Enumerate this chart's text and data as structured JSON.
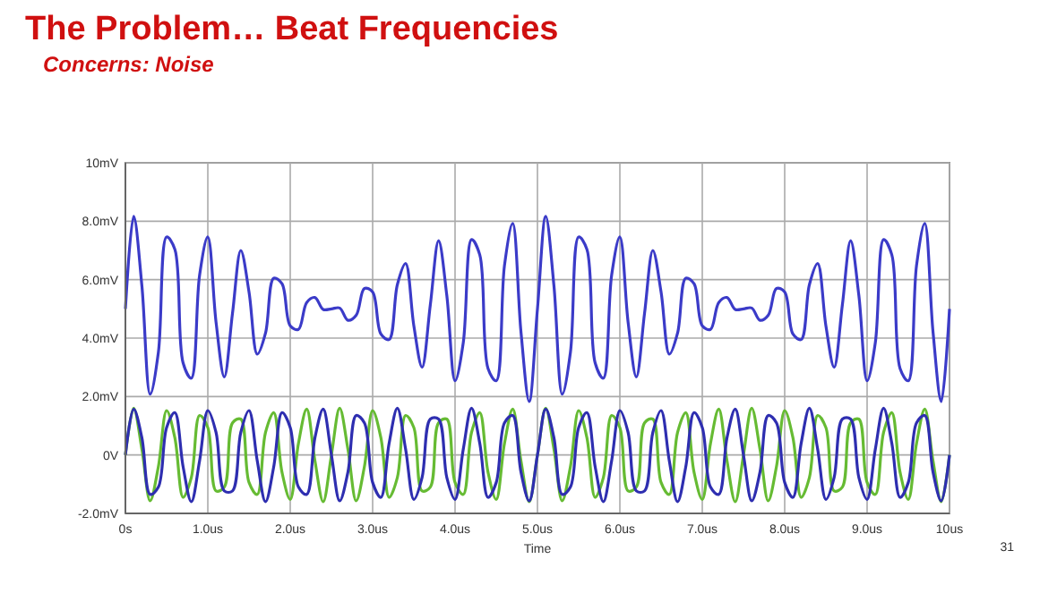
{
  "chart_data": {
    "type": "line",
    "title": "The Problem… Beat Frequencies",
    "subtitle": "Concerns: Noise",
    "xlabel": "Time",
    "annotations": [
      "31"
    ],
    "x": [
      0,
      0.1,
      0.2,
      0.3,
      0.4,
      0.5,
      0.6,
      0.7,
      0.8,
      0.9,
      1,
      1.1,
      1.2,
      1.3,
      1.4,
      1.5,
      1.6,
      1.7,
      1.8,
      1.9,
      2,
      2.1,
      2.2,
      2.3,
      2.4,
      2.5,
      2.6,
      2.7,
      2.8,
      2.9,
      3,
      3.1,
      3.2,
      3.3,
      3.4,
      3.5,
      3.6,
      3.7,
      3.8,
      3.9,
      4,
      4.1,
      4.2,
      4.3,
      4.4,
      4.5,
      4.6,
      4.7,
      4.8,
      4.9,
      5,
      5.1,
      5.2,
      5.3,
      5.4,
      5.5,
      5.6,
      5.7,
      5.8,
      5.9,
      6,
      6.1,
      6.2,
      6.3,
      6.4,
      6.5,
      6.6,
      6.7,
      6.8,
      6.9,
      7,
      7.1,
      7.2,
      7.3,
      7.4,
      7.5,
      7.6,
      7.7,
      7.8,
      7.9,
      8,
      8.1,
      8.2,
      8.3,
      8.4,
      8.5,
      8.6,
      8.7,
      8.8,
      8.9,
      9,
      9.1,
      9.2,
      9.3,
      9.4,
      9.5,
      9.6,
      9.7,
      9.8,
      9.9,
      10
    ],
    "series": [
      {
        "color": "#3b3bc8",
        "values": [
          5,
          8.17,
          5.79,
          2.08,
          3.51,
          7.46,
          7.04,
          3.15,
          2.63,
          6.15,
          7.46,
          4.54,
          2.67,
          4.86,
          7,
          5.58,
          3.45,
          4.17,
          6.05,
          5.86,
          4.42,
          4.3,
          5.22,
          5.39,
          4.98,
          5,
          5.03,
          4.61,
          4.78,
          5.7,
          5.58,
          4.14,
          3.95,
          5.83,
          6.55,
          4.42,
          3,
          5.14,
          7.33,
          5.46,
          2.54,
          3.85,
          7.37,
          6.85,
          2.96,
          2.54,
          6.49,
          7.92,
          4.21,
          1.83,
          5,
          8.17,
          5.79,
          2.08,
          3.51,
          7.46,
          7.04,
          3.15,
          2.63,
          6.15,
          7.46,
          4.54,
          2.67,
          4.86,
          7,
          5.58,
          3.45,
          4.17,
          6.05,
          5.86,
          4.42,
          4.3,
          5.22,
          5.39,
          4.98,
          5,
          5.03,
          4.61,
          4.78,
          5.7,
          5.58,
          4.14,
          3.95,
          5.83,
          6.55,
          4.42,
          3,
          5.14,
          7.33,
          5.46,
          2.54,
          3.85,
          7.37,
          6.85,
          2.96,
          2.54,
          6.49,
          7.92,
          4.21,
          1.83,
          5
        ]
      },
      {
        "color": "#66bb33",
        "values": [
          0,
          1.6,
          0.2,
          -1.57,
          -0.4,
          1.52,
          0.59,
          -1.45,
          -0.77,
          1.35,
          0.94,
          -1.23,
          -1.1,
          1.1,
          1.23,
          -0.94,
          -1.35,
          0.77,
          1.45,
          -0.59,
          -1.52,
          0.4,
          1.57,
          -0.2,
          -1.6,
          0,
          1.6,
          0.2,
          -1.57,
          -0.4,
          1.52,
          0.59,
          -1.45,
          -0.77,
          1.35,
          0.94,
          -1.23,
          -1.1,
          1.1,
          1.23,
          -0.94,
          -1.35,
          0.77,
          1.45,
          -0.59,
          -1.52,
          0.4,
          1.57,
          -0.2,
          -1.6,
          0,
          1.6,
          0.2,
          -1.57,
          -0.4,
          1.52,
          0.59,
          -1.45,
          -0.77,
          1.35,
          0.94,
          -1.23,
          -1.1,
          1.1,
          1.23,
          -0.94,
          -1.35,
          0.77,
          1.45,
          -0.59,
          -1.52,
          0.4,
          1.57,
          -0.2,
          -1.6,
          0,
          1.6,
          0.2,
          -1.57,
          -0.4,
          1.52,
          0.59,
          -1.45,
          -0.77,
          1.35,
          0.94,
          -1.23,
          -1.1,
          1.1,
          1.23,
          -0.94,
          -1.35,
          0.77,
          1.45,
          -0.59,
          -1.52,
          0.4,
          1.57,
          -0.2,
          -1.6,
          0
        ]
      },
      {
        "color": "#2e2eb0",
        "values": [
          0,
          1.57,
          0.59,
          -1.35,
          -1.1,
          0.94,
          1.45,
          -0.4,
          -1.6,
          -0.2,
          1.52,
          0.77,
          -1.23,
          -1.23,
          0.77,
          1.52,
          -0.2,
          -1.6,
          -0.4,
          1.45,
          0.94,
          -1.1,
          -1.35,
          0.59,
          1.57,
          0,
          -1.57,
          -0.59,
          1.35,
          1.1,
          -0.94,
          -1.45,
          0.4,
          1.6,
          0.2,
          -1.52,
          -0.77,
          1.23,
          1.23,
          -0.77,
          -1.52,
          0.2,
          1.6,
          0.4,
          -1.45,
          -0.94,
          1.1,
          1.35,
          -0.59,
          -1.57,
          0,
          1.57,
          0.59,
          -1.35,
          -1.1,
          0.94,
          1.45,
          -0.4,
          -1.6,
          -0.2,
          1.52,
          0.77,
          -1.23,
          -1.23,
          0.77,
          1.52,
          -0.2,
          -1.6,
          -0.4,
          1.45,
          0.94,
          -1.1,
          -1.35,
          0.59,
          1.57,
          0,
          -1.57,
          -0.59,
          1.35,
          1.1,
          -0.94,
          -1.45,
          0.4,
          1.6,
          0.2,
          -1.52,
          -0.77,
          1.23,
          1.23,
          -0.77,
          -1.52,
          0.2,
          1.6,
          0.4,
          -1.45,
          -0.94,
          1.1,
          1.35,
          -0.59,
          -1.57,
          0
        ]
      }
    ],
    "xlim": [
      0,
      10
    ],
    "xticks": [
      {
        "value": 0,
        "label": "0s"
      },
      {
        "value": 1,
        "label": "1.0us"
      },
      {
        "value": 2,
        "label": "2.0us"
      },
      {
        "value": 3,
        "label": "3.0us"
      },
      {
        "value": 4,
        "label": "4.0us"
      },
      {
        "value": 5,
        "label": "5.0us"
      },
      {
        "value": 6,
        "label": "6.0us"
      },
      {
        "value": 7,
        "label": "7.0us"
      },
      {
        "value": 8,
        "label": "8.0us"
      },
      {
        "value": 9,
        "label": "9.0us"
      },
      {
        "value": 10,
        "label": "10us"
      }
    ],
    "ylim": [
      -2,
      10
    ],
    "yticks": [
      {
        "value": -2,
        "label": "-2.0mV"
      },
      {
        "value": 0,
        "label": "0V"
      },
      {
        "value": 2,
        "label": "2.0mV"
      },
      {
        "value": 4,
        "label": "4.0mV"
      },
      {
        "value": 6,
        "label": "6.0mV"
      },
      {
        "value": 8,
        "label": "8.0mV"
      },
      {
        "value": 10,
        "label": "10mV"
      }
    ],
    "grid": true,
    "line_style": "solid"
  }
}
